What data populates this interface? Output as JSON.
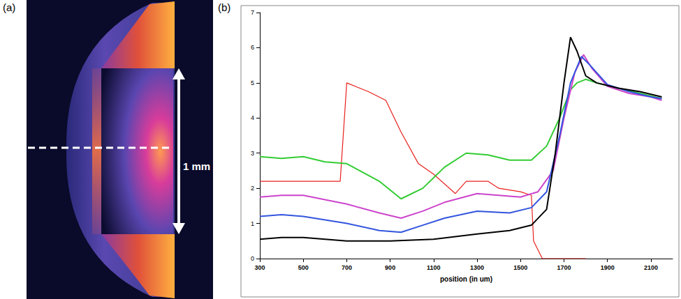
{
  "image_panel": {
    "label": "(a)",
    "annotation": "1 mm"
  },
  "chart_data": {
    "panel": "(b)",
    "type": "line",
    "xlabel": "position (in um)",
    "xlim": [
      300,
      2200
    ],
    "xticks": [
      300,
      500,
      700,
      900,
      1100,
      1300,
      1500,
      1700,
      1900,
      2100
    ],
    "ylim": [
      0,
      7
    ],
    "yticks": [
      0,
      1,
      2,
      3,
      4,
      5,
      6,
      7
    ],
    "grid": false,
    "series": [
      {
        "color": "#e8201c",
        "x": [
          300,
          670,
          700,
          800,
          880,
          950,
          1030,
          1100,
          1200,
          1250,
          1350,
          1400,
          1500,
          1550,
          1560,
          1600,
          1800
        ],
        "values": [
          2.2,
          2.2,
          5.0,
          4.75,
          4.5,
          3.6,
          2.7,
          2.4,
          1.85,
          2.2,
          2.2,
          2.0,
          1.9,
          1.8,
          0.5,
          0,
          0
        ]
      },
      {
        "color": "#33cc33",
        "x": [
          300,
          400,
          500,
          600,
          700,
          850,
          950,
          1050,
          1150,
          1250,
          1350,
          1450,
          1550,
          1620,
          1680,
          1730,
          1760,
          1800,
          1850,
          1950,
          2050,
          2150
        ],
        "values": [
          2.9,
          2.85,
          2.9,
          2.75,
          2.7,
          2.2,
          1.7,
          2.0,
          2.6,
          3.0,
          2.95,
          2.8,
          2.8,
          3.2,
          4.0,
          4.8,
          5.0,
          5.1,
          5.0,
          4.85,
          4.7,
          4.55
        ]
      },
      {
        "color": "#cc44cc",
        "x": [
          300,
          400,
          500,
          700,
          850,
          950,
          1050,
          1150,
          1300,
          1400,
          1500,
          1580,
          1650,
          1700,
          1750,
          1790,
          1830,
          1900,
          2000,
          2100,
          2150
        ],
        "values": [
          1.75,
          1.8,
          1.8,
          1.55,
          1.3,
          1.15,
          1.35,
          1.6,
          1.85,
          1.8,
          1.75,
          1.9,
          2.5,
          4.0,
          5.3,
          5.8,
          5.4,
          4.9,
          4.7,
          4.6,
          4.5
        ]
      },
      {
        "color": "#3355dd",
        "x": [
          300,
          400,
          500,
          700,
          850,
          950,
          1050,
          1150,
          1300,
          1450,
          1550,
          1620,
          1680,
          1730,
          1780,
          1820,
          1900,
          2000,
          2100,
          2150
        ],
        "values": [
          1.2,
          1.25,
          1.2,
          1.0,
          0.8,
          0.75,
          0.95,
          1.15,
          1.35,
          1.3,
          1.45,
          1.9,
          3.5,
          5.0,
          5.75,
          5.5,
          4.95,
          4.75,
          4.6,
          4.55
        ]
      },
      {
        "color": "#000000",
        "x": [
          300,
          400,
          500,
          700,
          900,
          1100,
          1300,
          1450,
          1550,
          1620,
          1660,
          1700,
          1730,
          1760,
          1800,
          1850,
          1950,
          2050,
          2150
        ],
        "values": [
          0.55,
          0.6,
          0.6,
          0.5,
          0.5,
          0.55,
          0.7,
          0.8,
          0.95,
          1.4,
          3.0,
          5.0,
          6.3,
          5.9,
          5.2,
          5.0,
          4.85,
          4.75,
          4.6
        ]
      }
    ]
  }
}
